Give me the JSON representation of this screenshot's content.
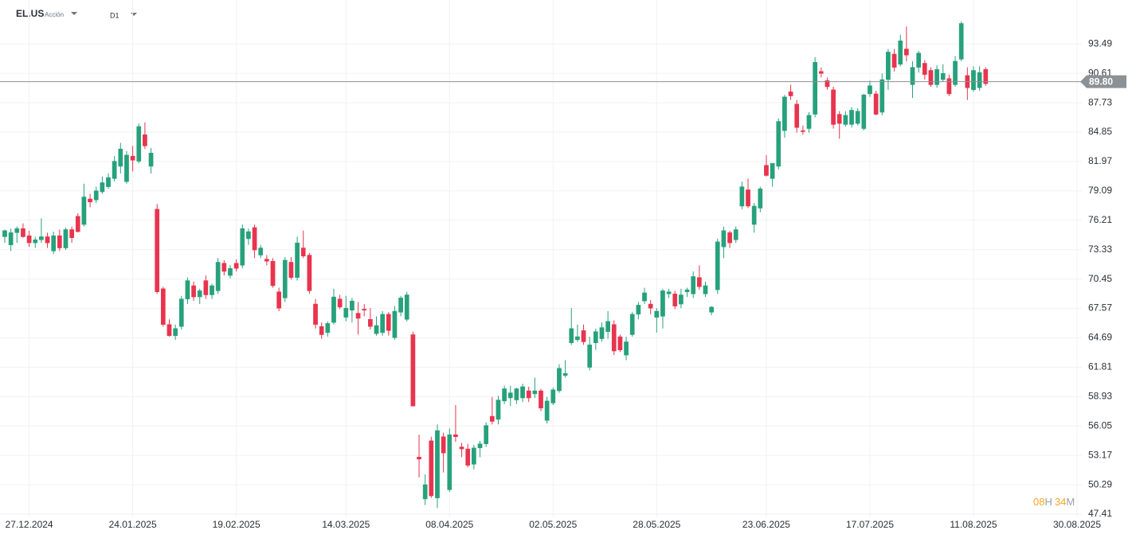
{
  "header": {
    "symbol": "EL.US",
    "instrument_type": "Acción",
    "timeframe": "D1"
  },
  "countdown": {
    "hours": "08",
    "hours_unit": "H",
    "minutes": "34",
    "minutes_unit": "M"
  },
  "chart_data": {
    "type": "candlestick",
    "up_color": "#26a17b",
    "down_color": "#e8344e",
    "ylim": [
      47.1,
      97.8
    ],
    "yticks": [
      93.49,
      90.61,
      87.73,
      84.85,
      81.97,
      79.09,
      76.21,
      73.33,
      70.45,
      67.57,
      64.69,
      61.81,
      58.93,
      56.05,
      53.17,
      50.29,
      47.41
    ],
    "grid": true,
    "price_line": {
      "value": 89.8,
      "label": "89.80"
    },
    "categories": [
      null,
      null,
      null,
      null,
      "27.12.2024",
      null,
      null,
      null,
      null,
      null,
      null,
      null,
      null,
      null,
      null,
      null,
      null,
      null,
      null,
      null,
      null,
      "24.01.2025",
      null,
      null,
      null,
      null,
      null,
      null,
      null,
      null,
      null,
      null,
      null,
      null,
      null,
      null,
      null,
      null,
      "19.02.2025",
      null,
      null,
      null,
      null,
      null,
      null,
      null,
      null,
      null,
      null,
      null,
      null,
      null,
      null,
      null,
      null,
      null,
      "14.03.2025",
      null,
      null,
      null,
      null,
      null,
      null,
      null,
      null,
      null,
      null,
      null,
      null,
      null,
      null,
      null,
      null,
      "08.04.2025",
      null,
      null,
      null,
      null,
      null,
      null,
      null,
      null,
      null,
      null,
      null,
      null,
      null,
      null,
      null,
      null,
      "02.05.2025",
      null,
      null,
      null,
      null,
      null,
      null,
      null,
      null,
      null,
      null,
      null,
      null,
      null,
      null,
      null,
      null,
      "28.05.2025",
      null,
      null,
      null,
      null,
      null,
      null,
      null,
      null,
      null,
      null,
      null,
      null,
      null,
      null,
      null,
      null,
      null,
      "23.06.2025",
      null,
      null,
      null,
      null,
      null,
      null,
      null,
      null,
      null,
      null,
      null,
      null,
      null,
      null,
      null,
      null,
      "17.07.2025",
      null,
      null,
      null,
      null,
      null,
      null,
      null,
      null,
      null,
      null,
      null,
      null,
      null,
      null,
      null,
      null,
      "11.08.2025",
      null,
      null,
      null,
      null,
      null,
      null,
      null,
      null,
      null,
      null,
      null,
      null,
      null,
      null,
      null,
      null,
      "30.08.2025"
    ],
    "ohlc": [
      [
        74.6,
        75.3,
        74.0,
        75.2
      ],
      [
        73.8,
        75.4,
        73.2,
        75.0
      ],
      [
        75.0,
        75.6,
        74.0,
        75.4
      ],
      [
        75.4,
        75.9,
        74.5,
        74.6
      ],
      [
        74.7,
        75.2,
        73.6,
        74.0
      ],
      [
        74.0,
        74.6,
        73.5,
        74.3
      ],
      [
        74.3,
        76.4,
        74.0,
        74.6
      ],
      [
        74.6,
        75.0,
        73.5,
        74.0
      ],
      [
        73.2,
        75.1,
        72.9,
        74.7
      ],
      [
        74.7,
        75.3,
        73.2,
        73.5
      ],
      [
        73.5,
        75.5,
        73.3,
        75.3
      ],
      [
        75.3,
        75.6,
        74.0,
        74.5
      ],
      [
        76.6,
        76.9,
        75.0,
        75.1
      ],
      [
        75.8,
        79.8,
        75.6,
        78.5
      ],
      [
        78.3,
        78.8,
        77.5,
        78.0
      ],
      [
        78.2,
        79.5,
        77.9,
        79.1
      ],
      [
        79.0,
        80.5,
        78.8,
        79.9
      ],
      [
        79.5,
        80.8,
        79.3,
        80.4
      ],
      [
        80.3,
        82.5,
        80.0,
        82.0
      ],
      [
        81.5,
        83.8,
        80.8,
        83.2
      ],
      [
        80.0,
        83.0,
        79.8,
        82.6
      ],
      [
        82.5,
        83.5,
        81.0,
        82.1
      ],
      [
        82.0,
        85.7,
        81.8,
        85.4
      ],
      [
        84.6,
        85.8,
        83.2,
        83.5
      ],
      [
        81.5,
        83.3,
        80.8,
        82.8
      ],
      [
        77.3,
        77.8,
        69.0,
        69.2
      ],
      [
        69.5,
        69.7,
        65.8,
        66.0
      ],
      [
        66.0,
        66.5,
        64.8,
        64.9
      ],
      [
        64.9,
        66.0,
        64.5,
        65.6
      ],
      [
        65.8,
        68.8,
        65.5,
        68.5
      ],
      [
        68.5,
        70.6,
        68.0,
        70.3
      ],
      [
        69.8,
        70.2,
        68.3,
        68.7
      ],
      [
        68.7,
        69.5,
        68.0,
        69.3
      ],
      [
        70.3,
        70.8,
        68.5,
        68.9
      ],
      [
        68.9,
        70.0,
        68.5,
        69.8
      ],
      [
        69.3,
        72.5,
        69.0,
        72.1
      ],
      [
        72.0,
        72.3,
        70.8,
        71.2
      ],
      [
        70.8,
        71.8,
        70.5,
        71.5
      ],
      [
        72.0,
        72.4,
        71.2,
        71.5
      ],
      [
        71.8,
        75.8,
        71.5,
        75.4
      ],
      [
        74.4,
        75.4,
        73.8,
        75.1
      ],
      [
        75.5,
        75.8,
        72.5,
        73.3
      ],
      [
        72.8,
        73.8,
        72.5,
        73.5
      ],
      [
        72.4,
        72.8,
        71.8,
        72.2
      ],
      [
        72.2,
        72.5,
        69.6,
        69.8
      ],
      [
        69.2,
        69.6,
        67.3,
        67.6
      ],
      [
        68.6,
        72.6,
        68.2,
        72.3
      ],
      [
        72.1,
        72.6,
        70.4,
        70.6
      ],
      [
        70.6,
        74.6,
        70.3,
        74.0
      ],
      [
        73.5,
        75.2,
        72.5,
        72.7
      ],
      [
        72.8,
        73.0,
        69.0,
        69.3
      ],
      [
        68.0,
        68.5,
        65.6,
        66.0
      ],
      [
        65.8,
        66.2,
        64.6,
        65.0
      ],
      [
        65.2,
        66.3,
        64.8,
        66.1
      ],
      [
        66.2,
        69.5,
        66.0,
        68.7
      ],
      [
        68.5,
        68.9,
        67.5,
        67.7
      ],
      [
        66.7,
        68.8,
        66.3,
        67.6
      ],
      [
        67.4,
        68.6,
        66.2,
        68.3
      ],
      [
        67.1,
        68.2,
        65.0,
        66.6
      ],
      [
        67.5,
        68.0,
        66.8,
        67.4
      ],
      [
        66.5,
        67.6,
        65.5,
        65.8
      ],
      [
        65.1,
        66.8,
        64.9,
        65.9
      ],
      [
        65.2,
        67.3,
        64.9,
        67.0
      ],
      [
        67.0,
        67.2,
        64.9,
        65.4
      ],
      [
        64.7,
        67.8,
        64.5,
        67.3
      ],
      [
        67.2,
        68.8,
        66.8,
        68.6
      ],
      [
        66.5,
        69.2,
        66.3,
        68.9
      ],
      [
        65.0,
        65.3,
        58.0,
        58.0
      ],
      [
        53.0,
        55.2,
        51.0,
        52.8
      ],
      [
        48.9,
        51.3,
        48.3,
        50.3
      ],
      [
        54.6,
        55.0,
        49.0,
        49.2
      ],
      [
        49.0,
        56.2,
        48.0,
        55.6
      ],
      [
        55.0,
        55.4,
        51.5,
        53.4
      ],
      [
        49.8,
        55.8,
        49.6,
        55.2
      ],
      [
        55.2,
        58.1,
        54.5,
        55.0
      ],
      [
        54.0,
        54.4,
        53.0,
        53.8
      ],
      [
        53.8,
        54.3,
        52.0,
        52.2
      ],
      [
        52.3,
        54.2,
        51.8,
        53.9
      ],
      [
        53.9,
        54.6,
        53.0,
        54.3
      ],
      [
        54.3,
        56.4,
        54.0,
        56.1
      ],
      [
        57.0,
        58.9,
        56.2,
        56.5
      ],
      [
        56.7,
        59.0,
        56.2,
        58.6
      ],
      [
        58.5,
        60.0,
        58.2,
        59.7
      ],
      [
        58.8,
        60.0,
        58.0,
        59.3
      ],
      [
        58.6,
        59.8,
        58.2,
        59.7
      ],
      [
        58.8,
        60.2,
        58.4,
        59.9
      ],
      [
        59.5,
        59.9,
        58.4,
        58.8
      ],
      [
        59.2,
        60.8,
        58.8,
        59.5
      ],
      [
        59.5,
        59.7,
        57.5,
        57.8
      ],
      [
        56.6,
        58.9,
        56.3,
        58.5
      ],
      [
        58.3,
        59.8,
        58.1,
        59.6
      ],
      [
        59.5,
        62.1,
        59.3,
        61.7
      ],
      [
        61.0,
        62.5,
        60.8,
        61.2
      ],
      [
        64.2,
        67.6,
        64.0,
        65.6
      ],
      [
        64.5,
        66.0,
        64.3,
        64.8
      ],
      [
        65.4,
        66.0,
        64.0,
        64.3
      ],
      [
        61.8,
        64.8,
        61.5,
        64.0
      ],
      [
        64.2,
        65.6,
        63.5,
        65.3
      ],
      [
        64.6,
        66.2,
        64.3,
        65.7
      ],
      [
        65.3,
        67.3,
        64.6,
        66.3
      ],
      [
        66.0,
        66.4,
        63.0,
        63.4
      ],
      [
        64.8,
        65.0,
        63.3,
        63.5
      ],
      [
        63.0,
        64.8,
        62.5,
        64.3
      ],
      [
        65.0,
        67.2,
        64.8,
        67.0
      ],
      [
        67.0,
        68.2,
        66.5,
        67.9
      ],
      [
        68.3,
        69.6,
        68.0,
        69.1
      ],
      [
        68.0,
        68.4,
        67.0,
        67.6
      ],
      [
        66.7,
        67.6,
        65.2,
        67.3
      ],
      [
        66.8,
        69.5,
        65.6,
        69.3
      ],
      [
        69.0,
        69.5,
        68.6,
        69.2
      ],
      [
        69.0,
        69.3,
        67.5,
        67.8
      ],
      [
        68.0,
        69.5,
        67.6,
        68.9
      ],
      [
        69.2,
        69.6,
        68.7,
        69.4
      ],
      [
        69.0,
        71.2,
        68.6,
        70.7
      ],
      [
        70.6,
        71.8,
        69.4,
        69.7
      ],
      [
        69.0,
        70.2,
        68.7,
        69.8
      ],
      [
        67.2,
        67.8,
        66.9,
        67.7
      ],
      [
        69.4,
        74.4,
        69.0,
        74.1
      ],
      [
        73.6,
        75.6,
        72.5,
        75.2
      ],
      [
        75.0,
        75.2,
        73.5,
        74.0
      ],
      [
        74.3,
        75.6,
        74.0,
        75.3
      ],
      [
        77.6,
        80.0,
        77.3,
        79.5
      ],
      [
        79.2,
        80.3,
        77.4,
        77.6
      ],
      [
        75.8,
        77.9,
        75.0,
        77.6
      ],
      [
        77.4,
        79.5,
        77.0,
        79.3
      ],
      [
        81.6,
        82.6,
        80.5,
        80.6
      ],
      [
        80.3,
        81.8,
        79.5,
        81.8
      ],
      [
        81.5,
        86.2,
        81.2,
        85.9
      ],
      [
        85.0,
        88.5,
        84.3,
        88.3
      ],
      [
        88.8,
        89.5,
        88.0,
        88.4
      ],
      [
        87.6,
        88.0,
        84.8,
        85.3
      ],
      [
        85.0,
        85.5,
        84.6,
        84.9
      ],
      [
        85.2,
        86.8,
        84.8,
        86.5
      ],
      [
        86.6,
        92.2,
        86.3,
        91.7
      ],
      [
        90.8,
        91.2,
        90.2,
        90.6
      ],
      [
        89.9,
        90.2,
        89.0,
        89.3
      ],
      [
        89.0,
        89.3,
        85.2,
        85.6
      ],
      [
        86.6,
        86.9,
        84.2,
        85.7
      ],
      [
        85.6,
        86.9,
        85.4,
        86.5
      ],
      [
        85.6,
        87.3,
        85.3,
        87.0
      ],
      [
        85.7,
        87.2,
        85.5,
        86.9
      ],
      [
        85.2,
        88.6,
        85.0,
        88.5
      ],
      [
        88.6,
        89.9,
        88.3,
        89.4
      ],
      [
        88.6,
        88.9,
        86.5,
        86.6
      ],
      [
        86.8,
        90.6,
        86.5,
        90.0
      ],
      [
        90.0,
        93.0,
        89.0,
        92.7
      ],
      [
        92.5,
        93.0,
        90.8,
        91.2
      ],
      [
        91.5,
        94.4,
        91.3,
        93.8
      ],
      [
        93.0,
        95.2,
        91.8,
        92.4
      ],
      [
        89.5,
        91.8,
        88.2,
        91.2
      ],
      [
        91.2,
        92.8,
        90.7,
        92.6
      ],
      [
        91.6,
        91.9,
        90.0,
        90.5
      ],
      [
        90.9,
        91.2,
        89.3,
        89.5
      ],
      [
        89.5,
        91.4,
        89.2,
        91.0
      ],
      [
        90.0,
        91.5,
        89.8,
        90.6
      ],
      [
        90.1,
        90.5,
        88.4,
        88.6
      ],
      [
        89.5,
        92.3,
        89.3,
        91.8
      ],
      [
        92.0,
        95.7,
        91.8,
        95.5
      ],
      [
        90.4,
        91.2,
        88.0,
        89.2
      ],
      [
        89.0,
        91.3,
        88.8,
        90.9
      ],
      [
        89.2,
        91.3,
        88.9,
        90.7
      ],
      [
        91.0,
        91.2,
        89.4,
        89.6
      ],
      null,
      null,
      null,
      null,
      null,
      null,
      null,
      null,
      null,
      null,
      null,
      null,
      null,
      null,
      null
    ]
  }
}
